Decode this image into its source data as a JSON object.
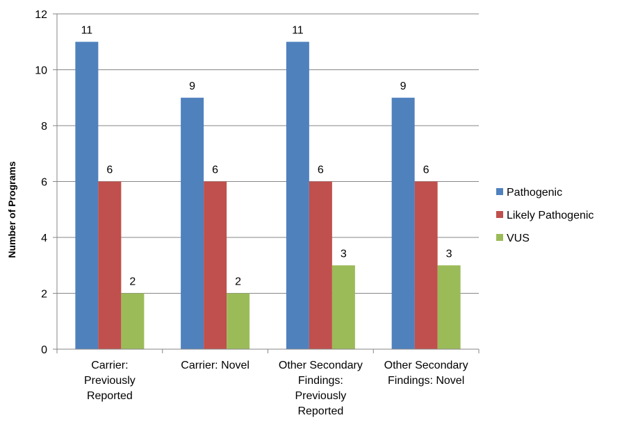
{
  "chart_data": {
    "type": "bar",
    "title": "",
    "xlabel": "",
    "ylabel": "Number of Programs",
    "ylim": [
      0,
      12
    ],
    "yticks": [
      0,
      2,
      4,
      6,
      8,
      10,
      12
    ],
    "grid": true,
    "legend_position": "right",
    "categories": [
      [
        "Carrier:",
        "Previously",
        "Reported"
      ],
      [
        "Carrier: Novel"
      ],
      [
        "Other Secondary",
        "Findings:",
        "Previously",
        "Reported"
      ],
      [
        "Other Secondary",
        "Findings: Novel"
      ]
    ],
    "series": [
      {
        "name": "Pathogenic",
        "color": "#4F81BD",
        "values": [
          11,
          9,
          11,
          9
        ]
      },
      {
        "name": "Likely Pathogenic",
        "color": "#C0504D",
        "values": [
          6,
          6,
          6,
          6
        ]
      },
      {
        "name": "VUS",
        "color": "#9BBB59",
        "values": [
          2,
          2,
          3,
          3
        ]
      }
    ]
  }
}
